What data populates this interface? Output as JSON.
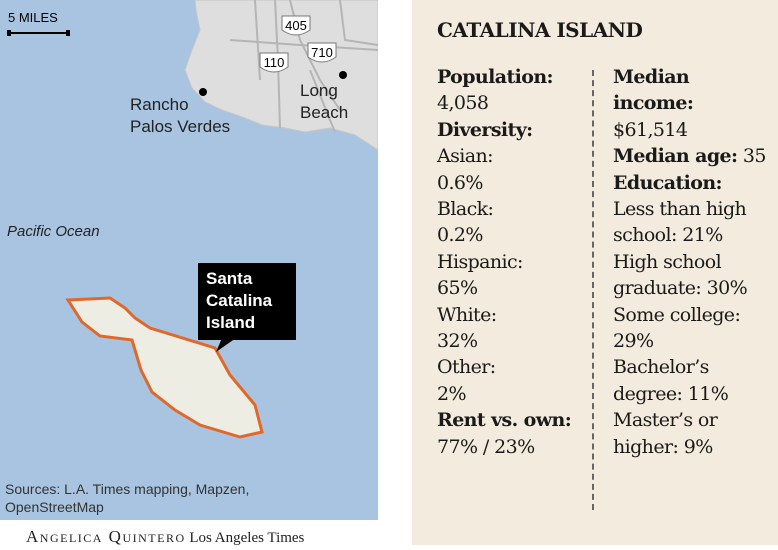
{
  "map": {
    "scale": "5 MILES",
    "highways": [
      "405",
      "110",
      "710"
    ],
    "places": [
      {
        "lines": [
          "Rancho",
          "Palos Verdes"
        ]
      },
      {
        "lines": [
          "Long",
          "Beach"
        ]
      }
    ],
    "ocean": "Pacific Ocean",
    "island_label": [
      "Santa",
      "Catalina",
      "Island"
    ],
    "sources": [
      "Sources: L.A. Times mapping, Mapzen,",
      "OpenStreetMap"
    ]
  },
  "credit": {
    "author": "Angelica Quintero",
    "outlet": "Los Angeles Times"
  },
  "panel": {
    "title": "CATALINA ISLAND",
    "left": [
      {
        "label": "Population:",
        "value": "4,058"
      },
      {
        "label": "Diversity:"
      },
      {
        "text": "Asian:",
        "value": "0.6%"
      },
      {
        "text": "Black:",
        "value": "0.2%"
      },
      {
        "text": "Hispanic:",
        "value": "65%"
      },
      {
        "text": "White:",
        "value": "32%"
      },
      {
        "text": "Other:",
        "value": "2%"
      },
      {
        "label": "Rent vs. own:",
        "value": "77% / 23%"
      }
    ],
    "right": [
      {
        "label": "Median income:",
        "value": "$61,514"
      },
      {
        "label": "Median age:",
        "inline": "35"
      },
      {
        "label": "Education:"
      },
      {
        "text": "Less than high school:",
        "inline": "21%"
      },
      {
        "text": "High school graduate:",
        "inline": "30%"
      },
      {
        "text": "Some college:",
        "inline": "29%"
      },
      {
        "text": "Bachelor’s degree:",
        "inline": "11%"
      },
      {
        "text": "Master’s or higher:",
        "inline": "9%"
      }
    ]
  }
}
